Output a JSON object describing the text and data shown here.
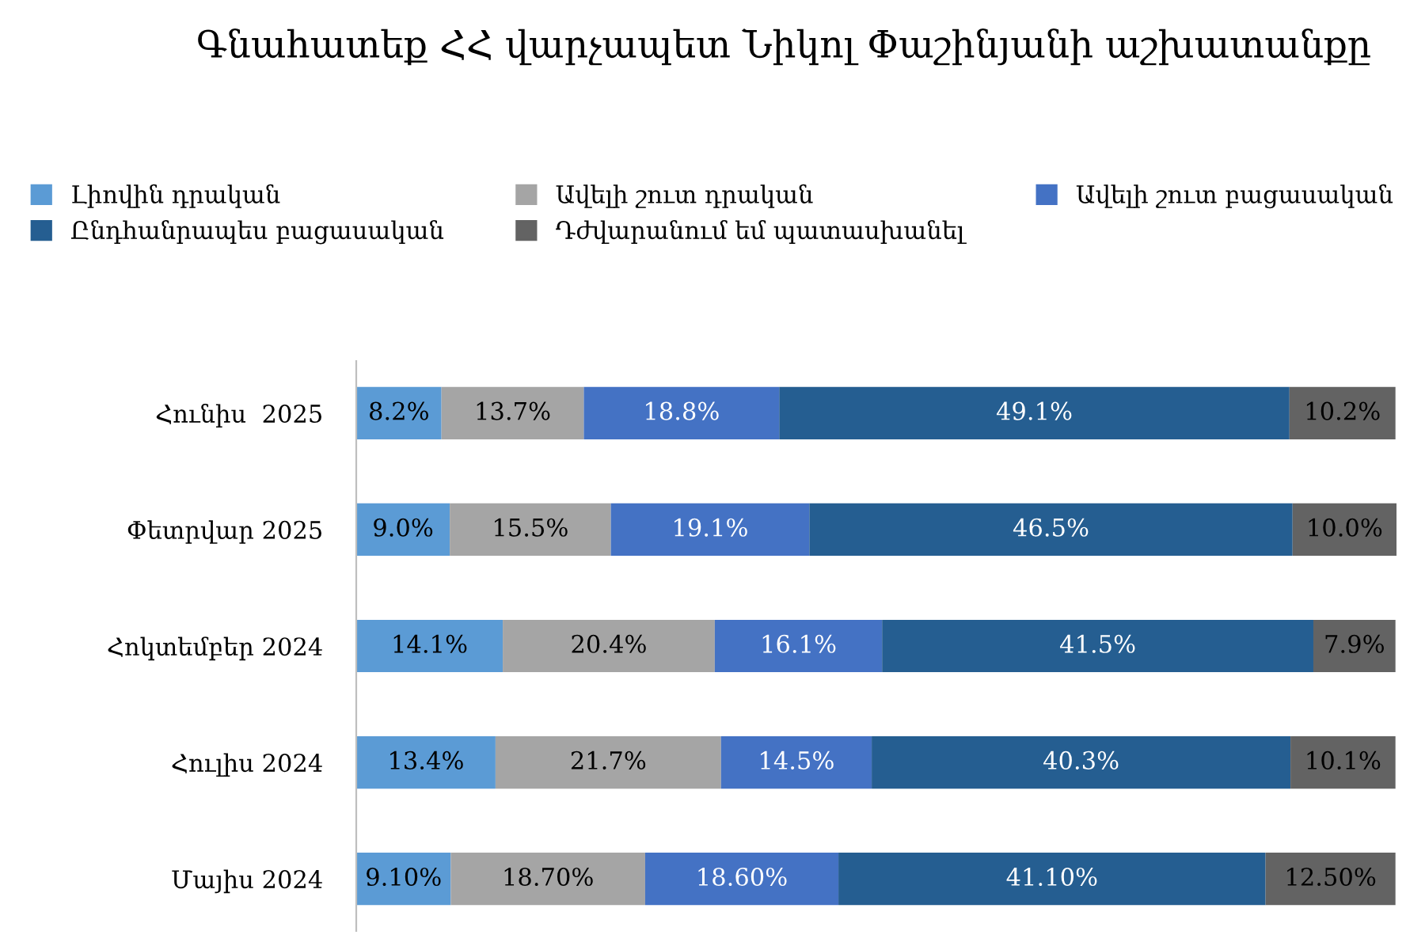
{
  "chart_data": {
    "type": "bar",
    "orientation": "horizontal",
    "stacked": true,
    "title": "Գնահատեք ՀՀ վարչապետ Նիկոլ Փաշինյանի աշխատանքը",
    "categories": [
      "Հունիս  2025",
      "Փետրվար 2025",
      "Հոկտեմբեր 2024",
      "Հուլիս 2024",
      "Մայիս 2024"
    ],
    "series": [
      {
        "name": "Լիովին դրական",
        "color": "#5b9bd5",
        "values": [
          8.2,
          9.0,
          14.1,
          13.4,
          9.1
        ],
        "value_labels": [
          "8.2%",
          "9.0%",
          "14.1%",
          "13.4%",
          "9.10%"
        ]
      },
      {
        "name": "Ավելի շուտ դրական",
        "color": "#a5a5a5",
        "values": [
          13.7,
          15.5,
          20.4,
          21.7,
          18.7
        ],
        "value_labels": [
          "13.7%",
          "15.5%",
          "20.4%",
          "21.7%",
          "18.70%"
        ]
      },
      {
        "name": "Ավելի շուտ բացասական",
        "color": "#4472c4",
        "values": [
          18.8,
          19.1,
          16.1,
          14.5,
          18.6
        ],
        "value_labels": [
          "18.8%",
          "19.1%",
          "16.1%",
          "14.5%",
          "18.60%"
        ]
      },
      {
        "name": "Ընդհանրապես բացասական",
        "color": "#255e91",
        "values": [
          49.1,
          46.5,
          41.5,
          40.3,
          41.1
        ],
        "value_labels": [
          "49.1%",
          "46.5%",
          "41.5%",
          "40.3%",
          "41.10%"
        ]
      },
      {
        "name": "Դժվարանում եմ պատասխանել",
        "color": "#636363",
        "values": [
          10.2,
          10.0,
          7.9,
          10.1,
          12.5
        ],
        "value_labels": [
          "10.2%",
          "10.0%",
          "7.9%",
          "10.1%",
          "12.50%"
        ]
      }
    ],
    "legend": "top",
    "grid": false
  }
}
